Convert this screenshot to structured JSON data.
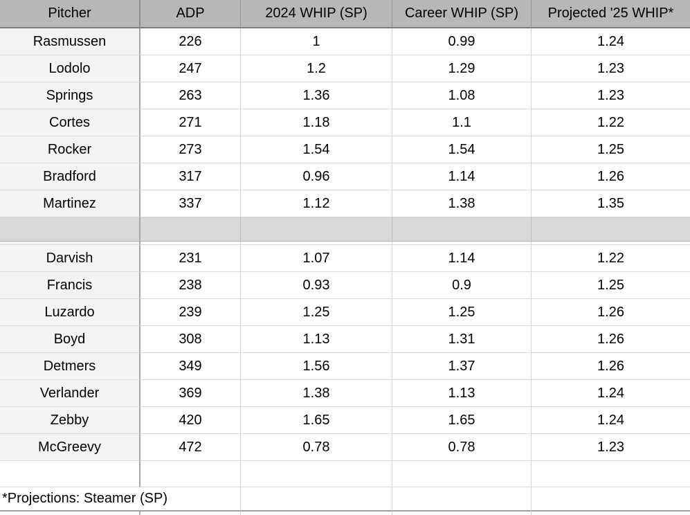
{
  "table": {
    "columns": [
      "Pitcher",
      "ADP",
      "2024 WHIP (SP)",
      "Career WHIP (SP)",
      "Projected '25 WHIP*"
    ],
    "group1": [
      {
        "pitcher": "Rasmussen",
        "adp": "226",
        "whip_2024": "1",
        "career_whip": "0.99",
        "projected_whip": "1.24"
      },
      {
        "pitcher": "Lodolo",
        "adp": "247",
        "whip_2024": "1.2",
        "career_whip": "1.29",
        "projected_whip": "1.23"
      },
      {
        "pitcher": "Springs",
        "adp": "263",
        "whip_2024": "1.36",
        "career_whip": "1.08",
        "projected_whip": "1.23"
      },
      {
        "pitcher": "Cortes",
        "adp": "271",
        "whip_2024": "1.18",
        "career_whip": "1.1",
        "projected_whip": "1.22"
      },
      {
        "pitcher": "Rocker",
        "adp": "273",
        "whip_2024": "1.54",
        "career_whip": "1.54",
        "projected_whip": "1.25"
      },
      {
        "pitcher": "Bradford",
        "adp": "317",
        "whip_2024": "0.96",
        "career_whip": "1.14",
        "projected_whip": "1.26"
      },
      {
        "pitcher": "Martinez",
        "adp": "337",
        "whip_2024": "1.12",
        "career_whip": "1.38",
        "projected_whip": "1.35"
      }
    ],
    "group2": [
      {
        "pitcher": "Darvish",
        "adp": "231",
        "whip_2024": "1.07",
        "career_whip": "1.14",
        "projected_whip": "1.22"
      },
      {
        "pitcher": "Francis",
        "adp": "238",
        "whip_2024": "0.93",
        "career_whip": "0.9",
        "projected_whip": "1.25"
      },
      {
        "pitcher": "Luzardo",
        "adp": "239",
        "whip_2024": "1.25",
        "career_whip": "1.25",
        "projected_whip": "1.26"
      },
      {
        "pitcher": "Boyd",
        "adp": "308",
        "whip_2024": "1.13",
        "career_whip": "1.31",
        "projected_whip": "1.26"
      },
      {
        "pitcher": "Detmers",
        "adp": "349",
        "whip_2024": "1.56",
        "career_whip": "1.37",
        "projected_whip": "1.26"
      },
      {
        "pitcher": "Verlander",
        "adp": "369",
        "whip_2024": "1.38",
        "career_whip": "1.13",
        "projected_whip": "1.24"
      },
      {
        "pitcher": "Zebby",
        "adp": "420",
        "whip_2024": "1.65",
        "career_whip": "1.65",
        "projected_whip": "1.24"
      },
      {
        "pitcher": "McGreevy",
        "adp": "472",
        "whip_2024": "0.78",
        "career_whip": "0.78",
        "projected_whip": "1.23"
      }
    ],
    "footnote": "*Projections: Steamer (SP)"
  },
  "colors": {
    "header_bg": "#b7b7b7",
    "separator_bg": "#d9d9d9",
    "label_column_bg": "#f3f3f3",
    "gridline": "#d2d2d2"
  }
}
